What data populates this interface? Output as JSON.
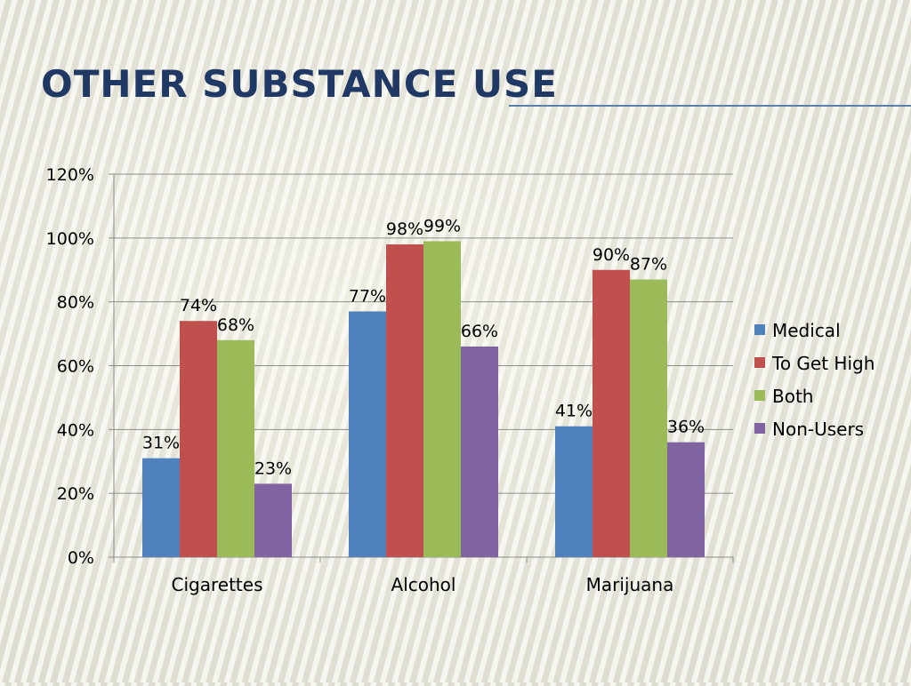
{
  "slide": {
    "title": "Other Substance Use"
  },
  "colors": {
    "title": "#1f3864",
    "accent_rule": "#5b7fae"
  },
  "chart_data": {
    "type": "bar",
    "title": "",
    "xlabel": "",
    "ylabel": "",
    "categories": [
      "Cigarettes",
      "Alcohol",
      "Marijuana"
    ],
    "series": [
      {
        "name": "Medical",
        "color": "#4f81bd",
        "values": [
          31,
          77,
          41
        ],
        "labels": [
          "31%",
          "77%",
          "41%"
        ]
      },
      {
        "name": "To Get High",
        "color": "#c0504d",
        "values": [
          74,
          98,
          90
        ],
        "labels": [
          "74%",
          "98%",
          "90%"
        ]
      },
      {
        "name": "Both",
        "color": "#9bbb59",
        "values": [
          68,
          99,
          87
        ],
        "labels": [
          "68%",
          "99%",
          "87%"
        ]
      },
      {
        "name": "Non-Users",
        "color": "#8064a2",
        "values": [
          23,
          66,
          36
        ],
        "labels": [
          "23%",
          "66%",
          "36%"
        ]
      }
    ],
    "ylim": [
      0,
      120
    ],
    "yticks": [
      0,
      20,
      40,
      60,
      80,
      100,
      120
    ],
    "ytick_labels": [
      "0%",
      "20%",
      "40%",
      "60%",
      "80%",
      "100%",
      "120%"
    ],
    "grid": true,
    "legend_position": "right"
  }
}
